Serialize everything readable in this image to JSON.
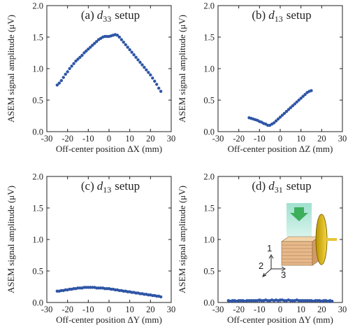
{
  "chart_data": [
    {
      "type": "scatter",
      "title": [
        "(a)",
        "d",
        "33",
        "setup"
      ],
      "xlabel": "Off-center position ΔX (mm)",
      "ylabel": "ASEM signal amplitude (μV)",
      "color": "#2e55a6",
      "xlim": [
        -30,
        30
      ],
      "xticks": [
        -30,
        -20,
        -10,
        0,
        10,
        20,
        30
      ],
      "ylim": [
        0,
        2
      ],
      "yticks": [
        {
          "value": 0,
          "label": "0.0"
        },
        {
          "value": 0.5,
          "label": "0.5"
        },
        {
          "value": 1,
          "label": "1.0"
        },
        {
          "value": 1.5,
          "label": "1.5"
        },
        {
          "value": 2,
          "label": "2.0"
        }
      ],
      "x": [
        -25,
        -24,
        -23,
        -22,
        -21,
        -20,
        -19,
        -18,
        -17,
        -16,
        -15,
        -14,
        -13,
        -12,
        -11,
        -10,
        -9,
        -8,
        -7,
        -6,
        -5,
        -4,
        -3,
        -2,
        -1,
        0,
        1,
        2,
        3,
        4,
        5,
        6,
        7,
        8,
        9,
        10,
        11,
        12,
        13,
        14,
        15,
        16,
        17,
        18,
        19,
        20,
        21,
        22,
        23,
        24,
        25
      ],
      "values": [
        0.74,
        0.77,
        0.81,
        0.86,
        0.91,
        0.95,
        1.0,
        1.04,
        1.08,
        1.12,
        1.15,
        1.18,
        1.21,
        1.25,
        1.28,
        1.31,
        1.34,
        1.37,
        1.4,
        1.43,
        1.46,
        1.48,
        1.5,
        1.51,
        1.51,
        1.51,
        1.52,
        1.53,
        1.54,
        1.53,
        1.5,
        1.46,
        1.42,
        1.38,
        1.34,
        1.3,
        1.26,
        1.22,
        1.18,
        1.14,
        1.1,
        1.06,
        1.02,
        0.98,
        0.94,
        0.9,
        0.85,
        0.8,
        0.75,
        0.69,
        0.64
      ]
    },
    {
      "type": "scatter",
      "title": [
        "(b)",
        "d",
        "13",
        "setup"
      ],
      "xlabel": "Off-center position ΔZ (mm)",
      "ylabel": "ASEM signal amplitude (μV)",
      "color": "#2e55a6",
      "xlim": [
        -30,
        30
      ],
      "xticks": [
        -30,
        -20,
        -10,
        0,
        10,
        20,
        30
      ],
      "ylim": [
        0,
        2
      ],
      "yticks": [
        {
          "value": 0,
          "label": "0.0"
        },
        {
          "value": 0.5,
          "label": "0.5"
        },
        {
          "value": 1,
          "label": "1.0"
        },
        {
          "value": 1.5,
          "label": "1.5"
        },
        {
          "value": 2,
          "label": "2.0"
        }
      ],
      "x": [
        -15,
        -14,
        -13,
        -12,
        -11,
        -10,
        -9,
        -8,
        -7,
        -6,
        -5,
        -4,
        -3,
        -2,
        -1,
        0,
        1,
        2,
        3,
        4,
        5,
        6,
        7,
        8,
        9,
        10,
        11,
        12,
        13,
        14,
        15
      ],
      "values": [
        0.22,
        0.21,
        0.2,
        0.19,
        0.18,
        0.16,
        0.15,
        0.13,
        0.12,
        0.1,
        0.1,
        0.12,
        0.14,
        0.17,
        0.2,
        0.23,
        0.26,
        0.29,
        0.32,
        0.35,
        0.38,
        0.41,
        0.44,
        0.47,
        0.5,
        0.53,
        0.56,
        0.59,
        0.62,
        0.64,
        0.65
      ]
    },
    {
      "type": "scatter",
      "title": [
        "(c)",
        "d",
        "13",
        "setup"
      ],
      "xlabel": "Off-center position ΔY (mm)",
      "ylabel": "ASEM signal amplitude (μV)",
      "color": "#2e55a6",
      "xlim": [
        -30,
        30
      ],
      "xticks": [
        -30,
        -20,
        -10,
        0,
        10,
        20,
        30
      ],
      "ylim": [
        0,
        2
      ],
      "yticks": [
        {
          "value": 0,
          "label": "0.0"
        },
        {
          "value": 0.5,
          "label": "0.5"
        },
        {
          "value": 1,
          "label": "1.0"
        },
        {
          "value": 1.5,
          "label": "1.5"
        },
        {
          "value": 2,
          "label": "2.0"
        }
      ],
      "x": [
        -25,
        -24,
        -23,
        -22,
        -21,
        -20,
        -19,
        -18,
        -17,
        -16,
        -15,
        -14,
        -13,
        -12,
        -11,
        -10,
        -9,
        -8,
        -7,
        -6,
        -5,
        -4,
        -3,
        -2,
        -1,
        0,
        1,
        2,
        3,
        4,
        5,
        6,
        7,
        8,
        9,
        10,
        11,
        12,
        13,
        14,
        15,
        16,
        17,
        18,
        19,
        20,
        21,
        22,
        23,
        24,
        25
      ],
      "values": [
        0.18,
        0.18,
        0.19,
        0.19,
        0.2,
        0.2,
        0.21,
        0.21,
        0.22,
        0.22,
        0.23,
        0.23,
        0.23,
        0.24,
        0.24,
        0.24,
        0.24,
        0.24,
        0.24,
        0.23,
        0.23,
        0.23,
        0.23,
        0.22,
        0.22,
        0.22,
        0.21,
        0.21,
        0.2,
        0.2,
        0.19,
        0.19,
        0.18,
        0.18,
        0.17,
        0.17,
        0.16,
        0.16,
        0.15,
        0.15,
        0.14,
        0.14,
        0.13,
        0.13,
        0.12,
        0.12,
        0.11,
        0.11,
        0.1,
        0.1,
        0.09
      ]
    },
    {
      "type": "scatter",
      "title": [
        "(d)",
        "d",
        "31",
        "setup"
      ],
      "xlabel": "Off-center position ΔY (mm)",
      "ylabel": "ASEM signal amplitude (μV)",
      "color": "#2e55a6",
      "xlim": [
        -30,
        30
      ],
      "xticks": [
        -30,
        -20,
        -10,
        0,
        10,
        20,
        30
      ],
      "ylim": [
        0,
        2
      ],
      "yticks": [
        {
          "value": 0,
          "label": "0.0"
        },
        {
          "value": 0.5,
          "label": "0.5"
        },
        {
          "value": 1,
          "label": "1.0"
        },
        {
          "value": 1.5,
          "label": "1.5"
        },
        {
          "value": 2,
          "label": "2.0"
        }
      ],
      "annotations": [
        "1",
        "2",
        "3"
      ],
      "x": [
        -25,
        -24,
        -23,
        -22,
        -21,
        -20,
        -19,
        -18,
        -17,
        -16,
        -15,
        -14,
        -13,
        -12,
        -11,
        -10,
        -9,
        -8,
        -7,
        -6,
        -5,
        -4,
        -3,
        -2,
        -1,
        0,
        1,
        2,
        3,
        4,
        5,
        6,
        7,
        8,
        9,
        10,
        11,
        12,
        13,
        14,
        15,
        16,
        17,
        18,
        19,
        20,
        21,
        22,
        23,
        24,
        25
      ],
      "values": [
        0.03,
        0.02,
        0.03,
        0.03,
        0.02,
        0.03,
        0.03,
        0.03,
        0.02,
        0.03,
        0.03,
        0.03,
        0.03,
        0.03,
        0.03,
        0.04,
        0.03,
        0.03,
        0.04,
        0.03,
        0.03,
        0.04,
        0.03,
        0.04,
        0.03,
        0.04,
        0.04,
        0.03,
        0.03,
        0.04,
        0.03,
        0.03,
        0.03,
        0.04,
        0.03,
        0.03,
        0.03,
        0.03,
        0.03,
        0.03,
        0.03,
        0.02,
        0.03,
        0.03,
        0.03,
        0.02,
        0.03,
        0.03,
        0.02,
        0.03,
        0.02
      ]
    }
  ]
}
